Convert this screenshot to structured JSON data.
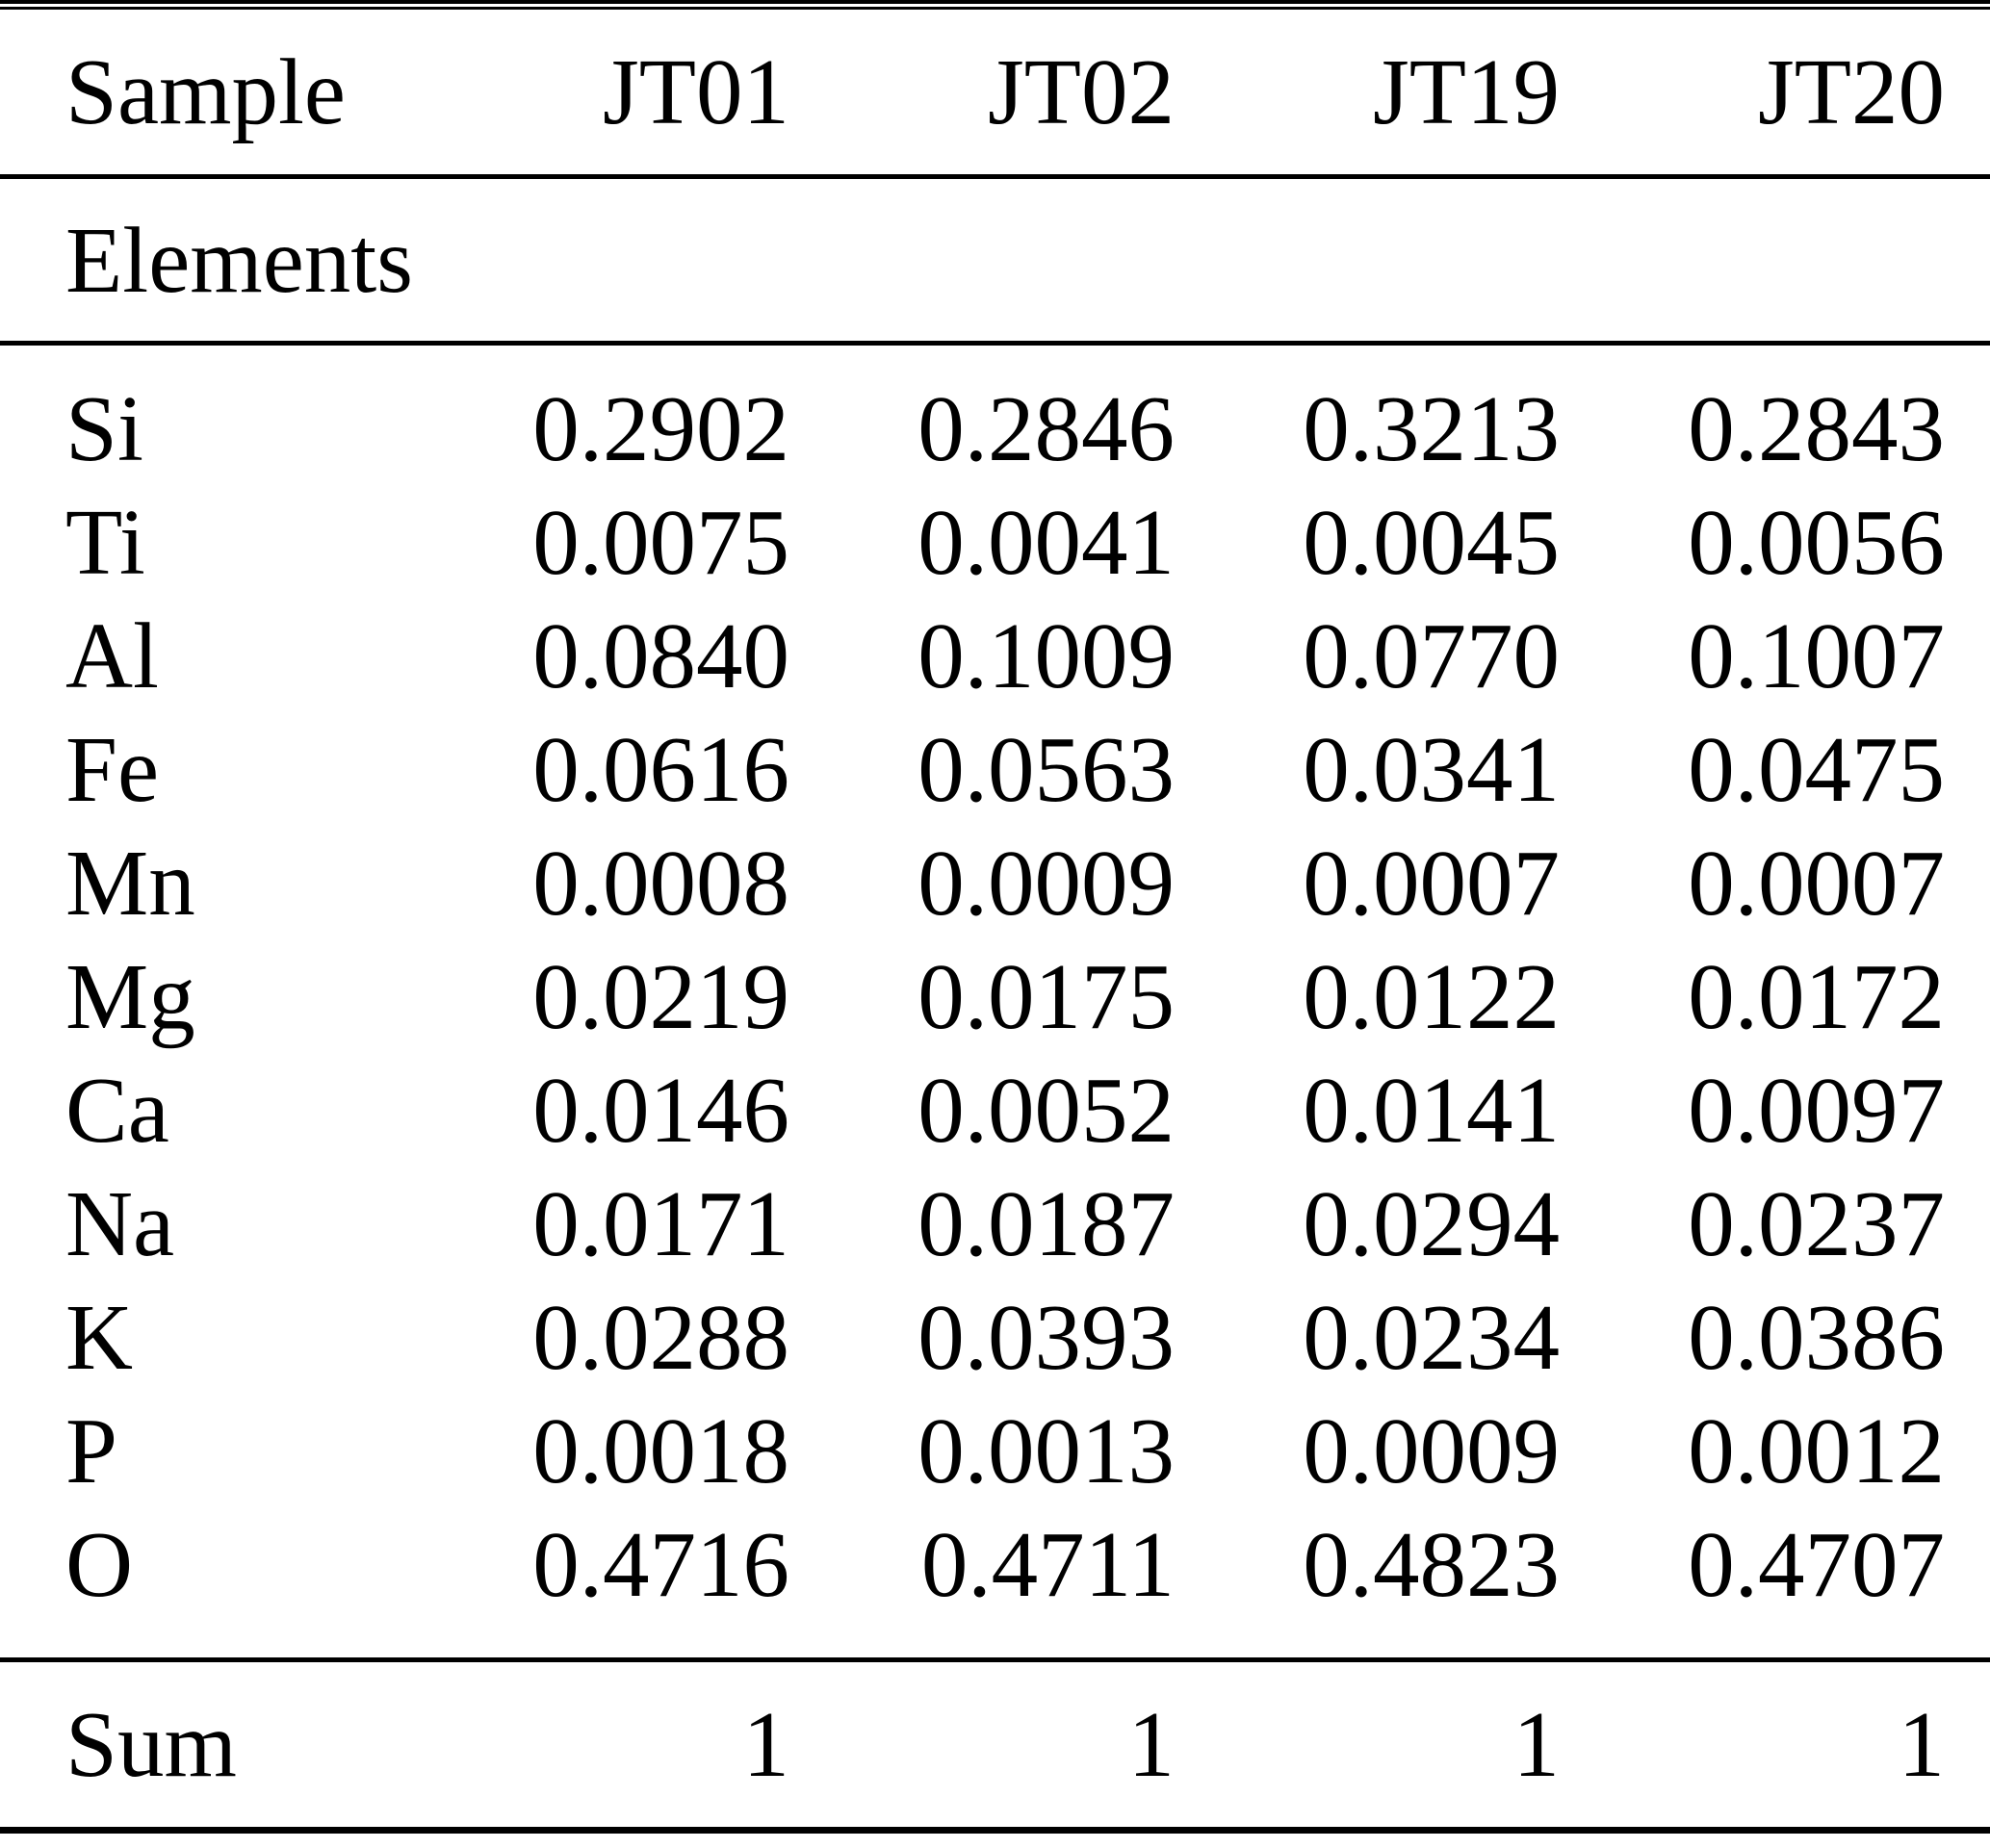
{
  "table": {
    "header": {
      "sample_label": "Sample",
      "columns": [
        "JT01",
        "JT02",
        "JT19",
        "JT20"
      ]
    },
    "section_label": "Elements",
    "rows": [
      {
        "element": "Si",
        "values": [
          "0.2902",
          "0.2846",
          "0.3213",
          "0.2843"
        ]
      },
      {
        "element": "Ti",
        "values": [
          "0.0075",
          "0.0041",
          "0.0045",
          "0.0056"
        ]
      },
      {
        "element": "Al",
        "values": [
          "0.0840",
          "0.1009",
          "0.0770",
          "0.1007"
        ]
      },
      {
        "element": "Fe",
        "values": [
          "0.0616",
          "0.0563",
          "0.0341",
          "0.0475"
        ]
      },
      {
        "element": "Mn",
        "values": [
          "0.0008",
          "0.0009",
          "0.0007",
          "0.0007"
        ]
      },
      {
        "element": "Mg",
        "values": [
          "0.0219",
          "0.0175",
          "0.0122",
          "0.0172"
        ]
      },
      {
        "element": "Ca",
        "values": [
          "0.0146",
          "0.0052",
          "0.0141",
          "0.0097"
        ]
      },
      {
        "element": "Na",
        "values": [
          "0.0171",
          "0.0187",
          "0.0294",
          "0.0237"
        ]
      },
      {
        "element": "K",
        "values": [
          "0.0288",
          "0.0393",
          "0.0234",
          "0.0386"
        ]
      },
      {
        "element": "P",
        "values": [
          "0.0018",
          "0.0013",
          "0.0009",
          "0.0012"
        ]
      },
      {
        "element": "O",
        "values": [
          "0.4716",
          "0.4711",
          "0.4823",
          "0.4707"
        ]
      }
    ],
    "footer": {
      "label": "Sum",
      "values": [
        "1",
        "1",
        "1",
        "1"
      ]
    }
  },
  "colors": {
    "text": "#000000",
    "background": "#ffffff",
    "rule": "#000000"
  }
}
